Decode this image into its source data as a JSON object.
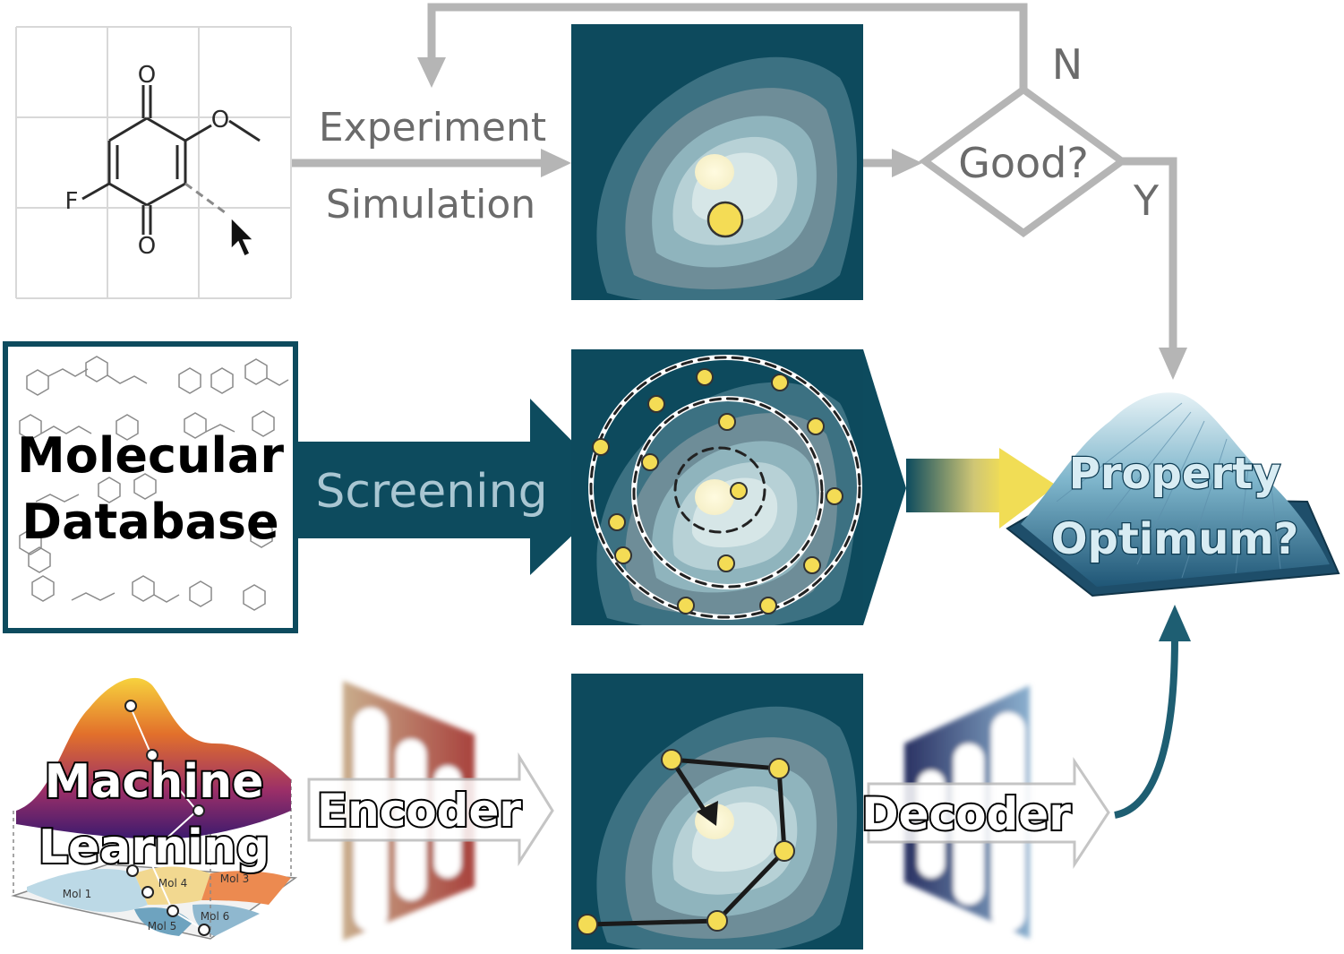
{
  "top_row": {
    "molecule": {
      "atom_labels": [
        "O",
        "O",
        "O",
        "F"
      ]
    },
    "experiment_label": "Experiment",
    "simulation_label": "Simulation",
    "decision_label": "Good?",
    "no_label": "N",
    "yes_label": "Y"
  },
  "middle_row": {
    "database_line1": "Molecular",
    "database_line2": "Database",
    "screening_label": "Screening",
    "optimum_line1": "Property",
    "optimum_line2": "Optimum?"
  },
  "bottom_row": {
    "ml_line1": "Machine",
    "ml_line2": "Learning",
    "mol_labels": [
      "Mol 1",
      "Mol 4",
      "Mol 3",
      "Mol 5",
      "Mol 6"
    ],
    "encoder_label": "Encoder",
    "decoder_label": "Decoder"
  },
  "colors": {
    "arrow_gray": "#b5b5b5",
    "teal_dark": "#0d4b5e",
    "point_yellow": "#f4dc55",
    "text_gray": "#6b6b6b"
  }
}
